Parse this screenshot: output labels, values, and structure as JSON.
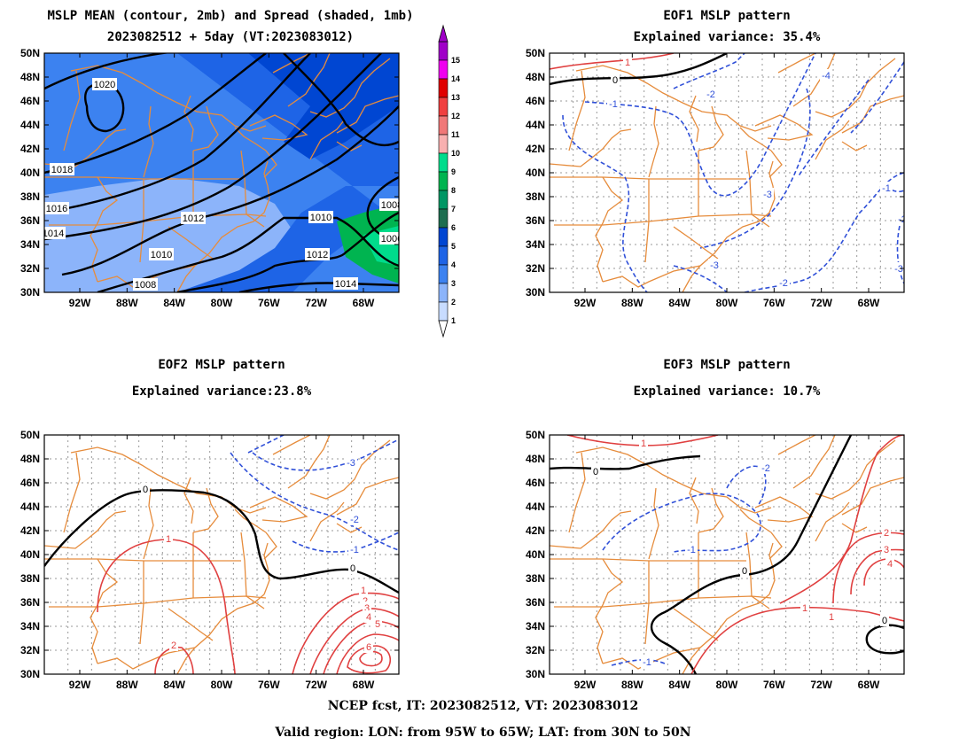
{
  "panels": [
    {
      "id": "mean",
      "title_line1": "MSLP MEAN (contour, 2mb) and Spread (shaded, 1mb)",
      "title_line2": "2023082512 + 5day (VT:2023083012)",
      "contour_labels": [
        "1020",
        "1018",
        "1016",
        "1014",
        "1012",
        "1010",
        "1008",
        "1010",
        "1012",
        "1014",
        "1010",
        "1008",
        "1006"
      ]
    },
    {
      "id": "eof1",
      "title_line1": "EOF1 MSLP pattern",
      "title_line2": "Explained variance: 35.4%",
      "contour_labels": [
        "0",
        "1",
        "-1",
        "-2",
        "-3",
        "-4",
        "-1",
        "-2",
        "-3",
        "-2",
        "-3"
      ]
    },
    {
      "id": "eof2",
      "title_line1": "EOF2 MSLP pattern",
      "title_line2": "Explained variance:23.8%",
      "contour_labels": [
        "0",
        "1",
        "2",
        "-1",
        "-2",
        "-3",
        "0",
        "1",
        "2",
        "3",
        "4",
        "5",
        "6"
      ]
    },
    {
      "id": "eof3",
      "title_line1": "EOF3 MSLP pattern",
      "title_line2": "Explained variance: 10.7%",
      "contour_labels": [
        "0",
        "1",
        "-1",
        "-2",
        "0",
        "-1",
        "1",
        "1",
        "2",
        "3",
        "4",
        "0"
      ]
    }
  ],
  "axes": {
    "lat_labels": [
      "50N",
      "48N",
      "46N",
      "44N",
      "42N",
      "40N",
      "38N",
      "36N",
      "34N",
      "32N",
      "30N"
    ],
    "lon_labels": [
      "92W",
      "88W",
      "84W",
      "80W",
      "76W",
      "72W",
      "68W"
    ],
    "lat_range": [
      30,
      50
    ],
    "lon_range": [
      -95,
      -65
    ]
  },
  "colorbar": {
    "labels": [
      "15",
      "14",
      "13",
      "12",
      "11",
      "10",
      "9",
      "8",
      "7",
      "6",
      "5",
      "4",
      "3",
      "2",
      "1"
    ],
    "colors": [
      "#a000c8",
      "#f000f0",
      "#e00000",
      "#f04040",
      "#f07878",
      "#f8b0b0",
      "#00dc8c",
      "#00b450",
      "#009664",
      "#1e6e50",
      "#0046d2",
      "#1e64e6",
      "#3c82f0",
      "#8cb4fa",
      "#c8dcff"
    ]
  },
  "colors": {
    "map": "#e68c3c",
    "positive": "#e04040",
    "negative": "#3050d8",
    "zero": "#000000"
  },
  "footer": {
    "line1": "NCEP fcst, IT: 2023082512, VT: 2023083012",
    "line2": "Valid region: LON: from 95W to 65W; LAT: from 30N to 50N"
  }
}
